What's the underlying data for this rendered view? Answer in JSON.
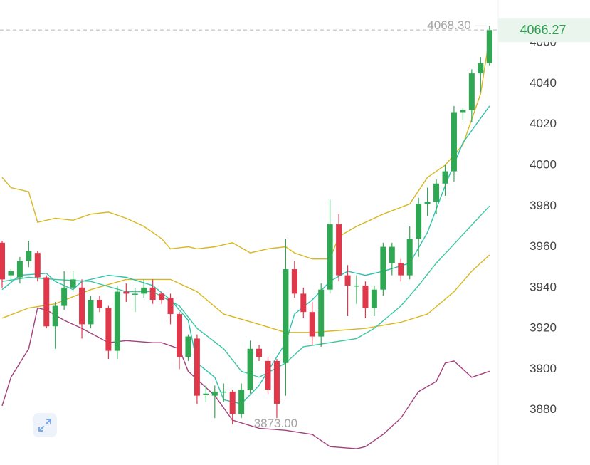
{
  "chart_data": {
    "type": "candlestick",
    "ylim": [
      3853,
      4081
    ],
    "yticks": [
      3880,
      3900,
      3920,
      3940,
      3960,
      3980,
      4000,
      4020,
      4040,
      4060
    ],
    "up_color": "#30a853",
    "down_color": "#e0374a",
    "open": [
      3962,
      3946,
      3945,
      3953,
      3957,
      3945,
      3921,
      3931,
      3940,
      3940,
      3922,
      3934,
      3930,
      3909,
      3938,
      3937,
      3937,
      3940,
      3937,
      3935,
      3927,
      3906,
      3915,
      3888,
      3887,
      3889,
      3889,
      3878,
      3890,
      3910,
      3904,
      3904,
      3903,
      3949,
      3937,
      3928,
      3916,
      3939,
      3971,
      3946,
      3941,
      3941,
      3930,
      3939,
      3952,
      3952,
      3946,
      3964,
      3981,
      3982,
      3991,
      3997,
      4026,
      4027,
      4045,
      4050
    ],
    "high": [
      3963,
      3949,
      3955,
      3963,
      3958,
      3946,
      3933,
      3948,
      3948,
      3944,
      3936,
      3936,
      3931,
      3941,
      3942,
      3940,
      3944,
      3944,
      3938,
      3937,
      3928,
      3917,
      3917,
      3892,
      3892,
      3893,
      3890,
      3893,
      3914,
      3912,
      3906,
      3905,
      3964,
      3953,
      3940,
      3933,
      3942,
      3983,
      3976,
      3951,
      3946,
      3943,
      3941,
      3962,
      3962,
      3954,
      3970,
      3984,
      3989,
      3993,
      4000,
      4029,
      4028,
      4047,
      4053,
      4068.3
    ],
    "low": [
      3940,
      3944,
      3942,
      3950,
      3943,
      3920,
      3910,
      3929,
      3938,
      3915,
      3920,
      3928,
      3905,
      3905,
      3933,
      3928,
      3935,
      3932,
      3932,
      3922,
      3900,
      3904,
      3883,
      3884,
      3876,
      3884,
      3873,
      3876,
      3888,
      3904,
      3888,
      3876,
      3887,
      3935,
      3925,
      3912,
      3911,
      3937,
      3943,
      3926,
      3932,
      3925,
      3926,
      3936,
      3946,
      3943,
      3944,
      3955,
      3975,
      3976,
      3985,
      3992,
      4022,
      4021,
      4036,
      4049
    ],
    "close": [
      3944,
      3948,
      3953,
      3958,
      3945,
      3921,
      3931,
      3940,
      3944,
      3922,
      3934,
      3930,
      3909,
      3938,
      3937,
      3937,
      3940,
      3934,
      3934,
      3927,
      3906,
      3916,
      3887,
      3888,
      3889,
      3889,
      3878,
      3890,
      3910,
      3906,
      3890,
      3883,
      3949,
      3937,
      3928,
      3916,
      3939,
      3971,
      3946,
      3941,
      3941,
      3930,
      3939,
      3960,
      3960,
      3946,
      3964,
      3981,
      3982,
      3991,
      3997,
      4026,
      4027,
      4045,
      4050,
      4066.27
    ],
    "lines": [
      {
        "color": "#d8b720",
        "x": [
          0,
          1,
          3,
          4,
          6,
          8,
          10,
          12,
          14,
          16,
          18,
          19,
          21,
          22,
          24,
          26,
          28,
          30,
          32,
          33,
          35,
          37,
          38,
          40,
          43,
          46,
          48,
          50,
          52,
          54,
          55
        ],
        "values": [
          3994,
          3989,
          3987,
          3972,
          3974,
          3973,
          3976,
          3977,
          3974,
          3970,
          3964,
          3959,
          3960,
          3959,
          3960,
          3962,
          3957,
          3959,
          3960,
          3957,
          3954,
          3954,
          3965,
          3970,
          3976,
          3981,
          3994,
          4000,
          4010,
          4035,
          4063
        ]
      },
      {
        "color": "#d8b720",
        "x": [
          0,
          3,
          6,
          10,
          14,
          19,
          22,
          25,
          29,
          32,
          35,
          38,
          41,
          45,
          48,
          51,
          53,
          55
        ],
        "values": [
          3925,
          3930,
          3932,
          3939,
          3944,
          3944,
          3938,
          3927,
          3922,
          3918,
          3918,
          3919,
          3920,
          3923,
          3927,
          3938,
          3948,
          3956
        ]
      },
      {
        "color": "#a3417c",
        "x": [
          0,
          1,
          3,
          4,
          5,
          7,
          9,
          12,
          14,
          17,
          18,
          20,
          21,
          24,
          26,
          29,
          32,
          35,
          37,
          40,
          41,
          43,
          45,
          47,
          49,
          50,
          51,
          53,
          55
        ],
        "values": [
          3882,
          3896,
          3910,
          3930,
          3929,
          3924,
          3920,
          3913,
          3914,
          3913,
          3913,
          3910,
          3899,
          3887,
          3875,
          3871,
          3870,
          3868,
          3862,
          3861,
          3862,
          3868,
          3876,
          3889,
          3894,
          3903,
          3904,
          3896,
          3899
        ]
      },
      {
        "color": "#2fc2ad",
        "x": [
          0,
          2,
          5,
          6,
          8,
          9,
          12,
          14,
          17,
          19,
          21,
          22,
          24,
          25,
          27,
          29,
          32,
          33,
          35,
          37,
          39,
          41,
          43,
          46,
          48,
          50,
          52,
          55
        ],
        "values": [
          3939,
          3946,
          3947,
          3943,
          3939,
          3943,
          3946,
          3945,
          3941,
          3934,
          3924,
          3903,
          3896,
          3885,
          3883,
          3892,
          3913,
          3927,
          3934,
          3943,
          3948,
          3946,
          3948,
          3952,
          3967,
          3990,
          4011,
          4029
        ]
      },
      {
        "color": "#3cc7a2",
        "x": [
          0,
          3,
          6,
          10,
          14,
          17,
          20,
          22,
          25,
          27,
          29,
          32,
          34,
          37,
          40,
          42,
          45,
          47,
          49,
          52,
          55
        ],
        "values": [
          3943,
          3945,
          3944,
          3943,
          3938,
          3938,
          3931,
          3920,
          3910,
          3899,
          3896,
          3903,
          3911,
          3913,
          3915,
          3920,
          3931,
          3941,
          3952,
          3966,
          3980
        ]
      }
    ],
    "last_price": 4066.27,
    "annotations": [
      {
        "value": 4068.3,
        "label": "4068.30"
      },
      {
        "value": 3873,
        "label": "3873.00"
      }
    ]
  }
}
